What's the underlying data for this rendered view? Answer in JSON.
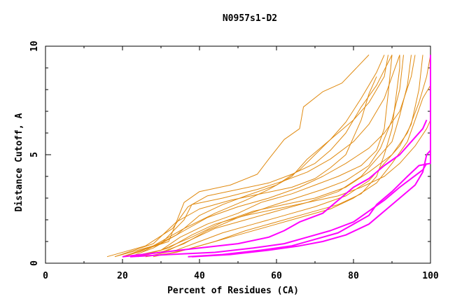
{
  "chart_data": {
    "type": "line",
    "title": "N0957s1-D2",
    "xlabel": "Percent of Residues (CA)",
    "ylabel": "Distance Cutoff, A",
    "xlim": [
      0,
      100
    ],
    "ylim": [
      0,
      10
    ],
    "x_ticks": [
      0,
      20,
      40,
      60,
      80,
      100
    ],
    "y_ticks": [
      0,
      5,
      10
    ],
    "colors": {
      "orange": "#e08a10",
      "magenta": "#ff00ff",
      "axis": "#000000"
    },
    "series": [
      {
        "name": "o1",
        "color": "orange",
        "points": [
          [
            16,
            0.3
          ],
          [
            26,
            0.8
          ],
          [
            33,
            1.6
          ],
          [
            37,
            2.6
          ],
          [
            42,
            3.1
          ],
          [
            50,
            3.4
          ],
          [
            58,
            3.7
          ],
          [
            64,
            4.1
          ],
          [
            70,
            4.6
          ],
          [
            74,
            5.2
          ],
          [
            78,
            6.0
          ],
          [
            82,
            7.2
          ],
          [
            86,
            8.2
          ],
          [
            90,
            9.6
          ]
        ]
      },
      {
        "name": "o2",
        "color": "orange",
        "points": [
          [
            18,
            0.3
          ],
          [
            30,
            0.9
          ],
          [
            36,
            2.0
          ],
          [
            38,
            2.7
          ],
          [
            46,
            3.0
          ],
          [
            55,
            3.4
          ],
          [
            62,
            3.8
          ],
          [
            68,
            4.2
          ],
          [
            74,
            4.8
          ],
          [
            80,
            5.6
          ],
          [
            84,
            6.4
          ],
          [
            88,
            7.6
          ],
          [
            92,
            9.6
          ]
        ]
      },
      {
        "name": "o3",
        "color": "orange",
        "points": [
          [
            20,
            0.3
          ],
          [
            32,
            1.0
          ],
          [
            36,
            2.8
          ],
          [
            40,
            3.3
          ],
          [
            48,
            3.6
          ],
          [
            55,
            4.1
          ],
          [
            58,
            4.8
          ],
          [
            62,
            5.7
          ],
          [
            66,
            6.2
          ],
          [
            67,
            7.2
          ],
          [
            72,
            7.9
          ],
          [
            77,
            8.3
          ],
          [
            84,
            9.6
          ]
        ]
      },
      {
        "name": "o4",
        "color": "orange",
        "points": [
          [
            22,
            0.3
          ],
          [
            30,
            0.6
          ],
          [
            35,
            1.2
          ],
          [
            42,
            1.8
          ],
          [
            50,
            2.3
          ],
          [
            56,
            2.8
          ],
          [
            64,
            3.2
          ],
          [
            70,
            3.6
          ],
          [
            76,
            4.0
          ],
          [
            82,
            4.5
          ],
          [
            86,
            5.2
          ],
          [
            88,
            6.2
          ],
          [
            89,
            7.8
          ],
          [
            90,
            9.6
          ]
        ]
      },
      {
        "name": "o5",
        "color": "orange",
        "points": [
          [
            22,
            0.3
          ],
          [
            30,
            0.5
          ],
          [
            36,
            0.9
          ],
          [
            42,
            1.5
          ],
          [
            50,
            2.1
          ],
          [
            58,
            2.6
          ],
          [
            65,
            3.0
          ],
          [
            72,
            3.4
          ],
          [
            78,
            3.8
          ],
          [
            84,
            4.5
          ],
          [
            87,
            5.3
          ],
          [
            90,
            6.6
          ],
          [
            92,
            8.0
          ],
          [
            93,
            9.6
          ]
        ]
      },
      {
        "name": "o6",
        "color": "orange",
        "points": [
          [
            24,
            0.3
          ],
          [
            32,
            0.6
          ],
          [
            38,
            1.1
          ],
          [
            44,
            1.6
          ],
          [
            52,
            2.0
          ],
          [
            60,
            2.4
          ],
          [
            68,
            2.8
          ],
          [
            76,
            3.3
          ],
          [
            82,
            4.0
          ],
          [
            86,
            4.8
          ],
          [
            90,
            5.6
          ],
          [
            92,
            6.8
          ],
          [
            94,
            8.2
          ],
          [
            95,
            9.6
          ]
        ]
      },
      {
        "name": "o7",
        "color": "orange",
        "points": [
          [
            26,
            0.3
          ],
          [
            34,
            0.6
          ],
          [
            40,
            1.0
          ],
          [
            46,
            1.4
          ],
          [
            54,
            1.8
          ],
          [
            62,
            2.2
          ],
          [
            70,
            2.6
          ],
          [
            78,
            3.1
          ],
          [
            84,
            3.8
          ],
          [
            88,
            4.6
          ],
          [
            92,
            5.4
          ],
          [
            95,
            6.4
          ],
          [
            97,
            8.0
          ],
          [
            98,
            9.6
          ]
        ]
      },
      {
        "name": "o8",
        "color": "orange",
        "points": [
          [
            20,
            0.3
          ],
          [
            26,
            0.6
          ],
          [
            34,
            1.3
          ],
          [
            40,
            2.2
          ],
          [
            46,
            2.7
          ],
          [
            52,
            3.1
          ],
          [
            60,
            3.6
          ],
          [
            66,
            4.3
          ],
          [
            70,
            5.0
          ],
          [
            74,
            5.7
          ],
          [
            78,
            6.5
          ],
          [
            82,
            7.6
          ],
          [
            86,
            8.8
          ],
          [
            88,
            9.6
          ]
        ]
      },
      {
        "name": "o9",
        "color": "orange",
        "points": [
          [
            22,
            0.3
          ],
          [
            28,
            0.7
          ],
          [
            36,
            1.5
          ],
          [
            42,
            2.1
          ],
          [
            50,
            2.6
          ],
          [
            58,
            3.0
          ],
          [
            66,
            3.5
          ],
          [
            72,
            4.0
          ],
          [
            78,
            4.6
          ],
          [
            84,
            5.3
          ],
          [
            88,
            6.0
          ],
          [
            92,
            7.0
          ],
          [
            95,
            8.6
          ],
          [
            96,
            9.6
          ]
        ]
      },
      {
        "name": "o10",
        "color": "orange",
        "points": [
          [
            24,
            0.3
          ],
          [
            30,
            0.6
          ],
          [
            38,
            1.2
          ],
          [
            46,
            1.9
          ],
          [
            54,
            2.4
          ],
          [
            62,
            2.7
          ],
          [
            70,
            3.0
          ],
          [
            78,
            3.5
          ],
          [
            84,
            4.2
          ],
          [
            90,
            5.0
          ],
          [
            94,
            6.0
          ],
          [
            97,
            7.4
          ],
          [
            99,
            8.6
          ],
          [
            100,
            9.6
          ]
        ]
      },
      {
        "name": "o11",
        "color": "orange",
        "points": [
          [
            26,
            0.3
          ],
          [
            34,
            0.5
          ],
          [
            42,
            0.9
          ],
          [
            50,
            1.3
          ],
          [
            58,
            1.7
          ],
          [
            66,
            2.1
          ],
          [
            74,
            2.5
          ],
          [
            80,
            3.0
          ],
          [
            86,
            3.7
          ],
          [
            90,
            4.6
          ],
          [
            94,
            5.6
          ],
          [
            96,
            6.6
          ],
          [
            98,
            7.6
          ],
          [
            100,
            8.2
          ]
        ]
      },
      {
        "name": "o12",
        "color": "orange",
        "points": [
          [
            18,
            0.3
          ],
          [
            28,
            0.9
          ],
          [
            34,
            1.9
          ],
          [
            40,
            2.5
          ],
          [
            48,
            2.9
          ],
          [
            56,
            3.2
          ],
          [
            64,
            3.5
          ],
          [
            70,
            3.9
          ],
          [
            74,
            4.4
          ],
          [
            78,
            5.0
          ],
          [
            80,
            5.8
          ],
          [
            82,
            6.6
          ],
          [
            84,
            7.8
          ],
          [
            86,
            8.6
          ]
        ]
      },
      {
        "name": "o13",
        "color": "orange",
        "points": [
          [
            24,
            0.3
          ],
          [
            32,
            0.7
          ],
          [
            38,
            1.3
          ],
          [
            44,
            1.8
          ],
          [
            52,
            2.2
          ],
          [
            60,
            2.5
          ],
          [
            68,
            2.8
          ],
          [
            76,
            3.1
          ],
          [
            82,
            3.5
          ],
          [
            88,
            4.0
          ],
          [
            92,
            4.6
          ],
          [
            96,
            5.4
          ],
          [
            99,
            6.2
          ],
          [
            100,
            6.6
          ]
        ]
      },
      {
        "name": "o14",
        "color": "orange",
        "points": [
          [
            28,
            0.3
          ],
          [
            36,
            0.6
          ],
          [
            44,
            1.0
          ],
          [
            52,
            1.5
          ],
          [
            60,
            1.9
          ],
          [
            68,
            2.3
          ],
          [
            76,
            2.7
          ],
          [
            82,
            3.2
          ],
          [
            86,
            4.0
          ],
          [
            88,
            5.0
          ],
          [
            90,
            6.2
          ],
          [
            91,
            7.6
          ],
          [
            92,
            9.0
          ],
          [
            92,
            9.6
          ]
        ]
      },
      {
        "name": "o15",
        "color": "orange",
        "points": [
          [
            20,
            0.3
          ],
          [
            28,
            0.8
          ],
          [
            36,
            1.6
          ],
          [
            44,
            2.3
          ],
          [
            52,
            2.9
          ],
          [
            58,
            3.4
          ],
          [
            64,
            4.0
          ],
          [
            68,
            4.8
          ],
          [
            72,
            5.4
          ],
          [
            76,
            6.0
          ],
          [
            80,
            6.6
          ],
          [
            84,
            7.4
          ],
          [
            88,
            8.6
          ],
          [
            89,
            9.6
          ]
        ]
      },
      {
        "name": "m1",
        "color": "magenta",
        "points": [
          [
            20,
            0.3
          ],
          [
            30,
            0.5
          ],
          [
            40,
            0.7
          ],
          [
            50,
            0.9
          ],
          [
            58,
            1.2
          ],
          [
            62,
            1.5
          ],
          [
            66,
            1.9
          ],
          [
            72,
            2.3
          ],
          [
            76,
            2.9
          ],
          [
            80,
            3.5
          ],
          [
            84,
            3.9
          ],
          [
            88,
            4.5
          ],
          [
            92,
            5.0
          ],
          [
            95,
            5.6
          ],
          [
            98,
            6.2
          ],
          [
            99,
            6.6
          ]
        ]
      },
      {
        "name": "m2",
        "color": "magenta",
        "points": [
          [
            22,
            0.3
          ],
          [
            32,
            0.4
          ],
          [
            44,
            0.5
          ],
          [
            54,
            0.7
          ],
          [
            62,
            0.9
          ],
          [
            68,
            1.2
          ],
          [
            74,
            1.5
          ],
          [
            80,
            1.9
          ],
          [
            84,
            2.4
          ],
          [
            88,
            2.9
          ],
          [
            92,
            3.5
          ],
          [
            95,
            3.9
          ],
          [
            98,
            4.3
          ],
          [
            99,
            4.6
          ]
        ]
      },
      {
        "name": "m3",
        "color": "magenta",
        "points": [
          [
            38,
            0.3
          ],
          [
            48,
            0.4
          ],
          [
            58,
            0.6
          ],
          [
            66,
            0.8
          ],
          [
            72,
            1.0
          ],
          [
            78,
            1.3
          ],
          [
            84,
            1.8
          ],
          [
            88,
            2.4
          ],
          [
            92,
            3.0
          ],
          [
            96,
            3.6
          ],
          [
            98,
            4.2
          ],
          [
            99,
            5.0
          ],
          [
            100,
            5.2
          ]
        ]
      },
      {
        "name": "m4",
        "color": "magenta",
        "points": [
          [
            37,
            0.3
          ],
          [
            46,
            0.4
          ],
          [
            56,
            0.6
          ],
          [
            64,
            0.8
          ],
          [
            70,
            1.1
          ],
          [
            76,
            1.4
          ],
          [
            80,
            1.8
          ],
          [
            84,
            2.2
          ],
          [
            86,
            2.7
          ],
          [
            90,
            3.3
          ],
          [
            94,
            4.0
          ],
          [
            97,
            4.5
          ],
          [
            100,
            4.6
          ],
          [
            100,
            6.6
          ],
          [
            100,
            9.6
          ]
        ]
      }
    ]
  }
}
